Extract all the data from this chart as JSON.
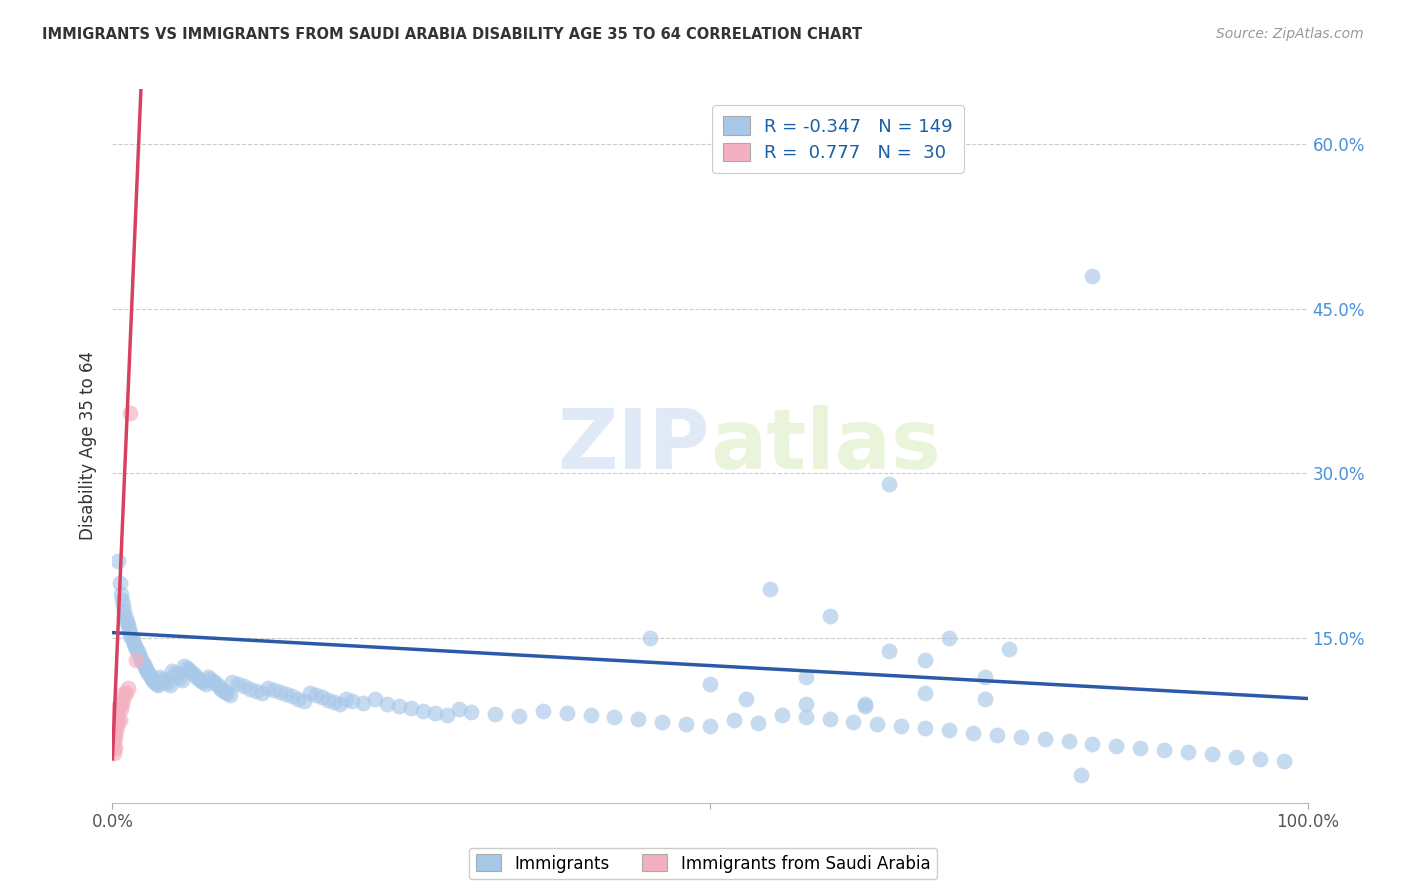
{
  "title": "IMMIGRANTS VS IMMIGRANTS FROM SAUDI ARABIA DISABILITY AGE 35 TO 64 CORRELATION CHART",
  "source": "Source: ZipAtlas.com",
  "ylabel": "Disability Age 35 to 64",
  "legend_label_1": "Immigrants",
  "legend_label_2": "Immigrants from Saudi Arabia",
  "R1": -0.347,
  "N1": 149,
  "R2": 0.777,
  "N2": 30,
  "color1": "#a8c8e8",
  "color2": "#f4b0c0",
  "line_color1": "#2a5aa8",
  "line_color2": "#d84060",
  "watermark_zip": "ZIP",
  "watermark_atlas": "atlas",
  "xlim": [
    0,
    1.0
  ],
  "ylim": [
    0,
    0.65
  ],
  "fig_width": 14.06,
  "fig_height": 8.92,
  "dpi": 100,
  "blue_x": [
    0.005,
    0.006,
    0.007,
    0.008,
    0.009,
    0.01,
    0.01,
    0.011,
    0.012,
    0.013,
    0.014,
    0.015,
    0.015,
    0.016,
    0.017,
    0.018,
    0.019,
    0.02,
    0.021,
    0.022,
    0.023,
    0.024,
    0.025,
    0.026,
    0.027,
    0.028,
    0.029,
    0.03,
    0.031,
    0.032,
    0.033,
    0.034,
    0.035,
    0.036,
    0.037,
    0.038,
    0.04,
    0.042,
    0.044,
    0.046,
    0.048,
    0.05,
    0.052,
    0.054,
    0.056,
    0.058,
    0.06,
    0.062,
    0.064,
    0.066,
    0.068,
    0.07,
    0.072,
    0.074,
    0.076,
    0.078,
    0.08,
    0.082,
    0.084,
    0.086,
    0.088,
    0.09,
    0.092,
    0.094,
    0.096,
    0.098,
    0.1,
    0.105,
    0.11,
    0.115,
    0.12,
    0.125,
    0.13,
    0.135,
    0.14,
    0.145,
    0.15,
    0.155,
    0.16,
    0.165,
    0.17,
    0.175,
    0.18,
    0.185,
    0.19,
    0.195,
    0.2,
    0.21,
    0.22,
    0.23,
    0.24,
    0.25,
    0.26,
    0.27,
    0.28,
    0.29,
    0.3,
    0.32,
    0.34,
    0.36,
    0.38,
    0.4,
    0.42,
    0.44,
    0.46,
    0.48,
    0.5,
    0.52,
    0.54,
    0.56,
    0.58,
    0.6,
    0.62,
    0.64,
    0.66,
    0.68,
    0.7,
    0.72,
    0.74,
    0.76,
    0.78,
    0.8,
    0.82,
    0.84,
    0.86,
    0.88,
    0.9,
    0.92,
    0.94,
    0.96,
    0.98,
    0.82,
    0.65,
    0.55,
    0.7,
    0.75,
    0.6,
    0.65,
    0.45,
    0.5,
    0.53,
    0.58,
    0.63,
    0.68,
    0.73,
    0.68,
    0.73,
    0.58,
    0.63,
    0.81
  ],
  "blue_y": [
    0.22,
    0.2,
    0.19,
    0.185,
    0.18,
    0.175,
    0.17,
    0.168,
    0.165,
    0.162,
    0.158,
    0.155,
    0.152,
    0.15,
    0.148,
    0.145,
    0.143,
    0.14,
    0.138,
    0.135,
    0.133,
    0.13,
    0.128,
    0.126,
    0.124,
    0.122,
    0.12,
    0.118,
    0.116,
    0.115,
    0.113,
    0.112,
    0.11,
    0.109,
    0.108,
    0.107,
    0.115,
    0.113,
    0.111,
    0.109,
    0.107,
    0.12,
    0.118,
    0.116,
    0.114,
    0.112,
    0.125,
    0.123,
    0.121,
    0.119,
    0.117,
    0.115,
    0.113,
    0.111,
    0.11,
    0.108,
    0.115,
    0.113,
    0.111,
    0.109,
    0.107,
    0.105,
    0.103,
    0.101,
    0.1,
    0.098,
    0.11,
    0.108,
    0.106,
    0.104,
    0.102,
    0.1,
    0.105,
    0.103,
    0.101,
    0.099,
    0.097,
    0.095,
    0.093,
    0.1,
    0.098,
    0.096,
    0.094,
    0.092,
    0.09,
    0.095,
    0.093,
    0.091,
    0.095,
    0.09,
    0.088,
    0.086,
    0.084,
    0.082,
    0.08,
    0.085,
    0.083,
    0.081,
    0.079,
    0.084,
    0.082,
    0.08,
    0.078,
    0.076,
    0.074,
    0.072,
    0.07,
    0.075,
    0.073,
    0.08,
    0.078,
    0.076,
    0.074,
    0.072,
    0.07,
    0.068,
    0.066,
    0.064,
    0.062,
    0.06,
    0.058,
    0.056,
    0.054,
    0.052,
    0.05,
    0.048,
    0.046,
    0.044,
    0.042,
    0.04,
    0.038,
    0.48,
    0.29,
    0.195,
    0.15,
    0.14,
    0.17,
    0.138,
    0.15,
    0.108,
    0.095,
    0.09,
    0.088,
    0.1,
    0.095,
    0.13,
    0.115,
    0.115,
    0.09,
    0.025
  ],
  "pink_x": [
    0.001,
    0.001,
    0.001,
    0.001,
    0.001,
    0.001,
    0.001,
    0.001,
    0.002,
    0.002,
    0.002,
    0.002,
    0.002,
    0.003,
    0.003,
    0.003,
    0.004,
    0.004,
    0.005,
    0.005,
    0.006,
    0.006,
    0.007,
    0.008,
    0.009,
    0.01,
    0.011,
    0.013,
    0.015,
    0.02
  ],
  "pink_y": [
    0.045,
    0.05,
    0.055,
    0.06,
    0.065,
    0.07,
    0.075,
    0.08,
    0.05,
    0.06,
    0.07,
    0.075,
    0.08,
    0.065,
    0.075,
    0.085,
    0.07,
    0.08,
    0.075,
    0.085,
    0.075,
    0.09,
    0.085,
    0.09,
    0.095,
    0.1,
    0.1,
    0.105,
    0.355,
    0.13
  ]
}
